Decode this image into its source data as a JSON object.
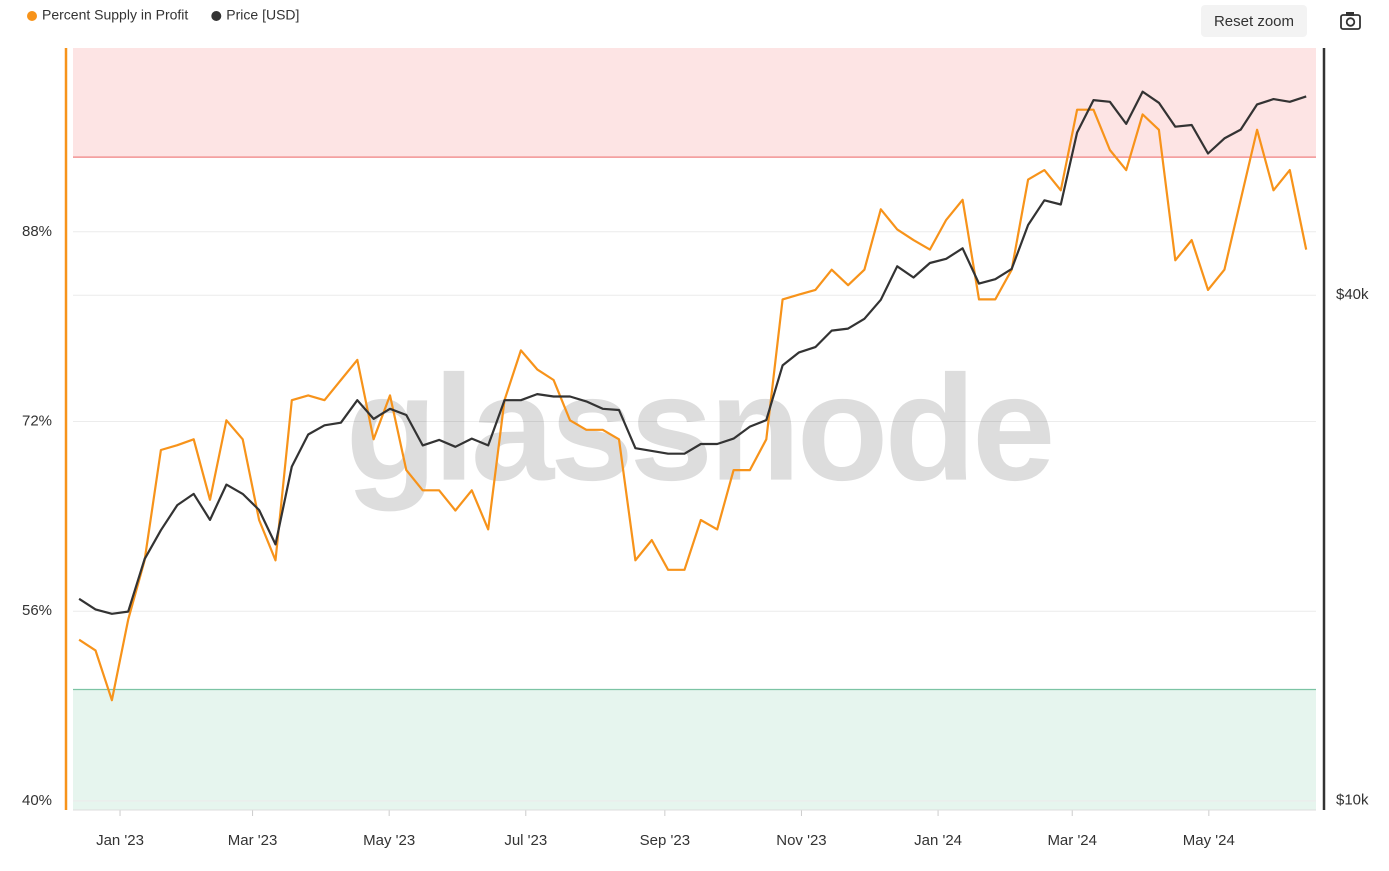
{
  "chart_data": {
    "type": "line",
    "watermark": "glassnode",
    "reset_button": "Reset zoom",
    "log_y2": true,
    "grid": true,
    "legend": "top-left",
    "x": [
      2022.95,
      2022.97,
      2022.99,
      2023.01,
      2023.03,
      2023.05,
      2023.07,
      2023.09,
      2023.11,
      2023.13,
      2023.15,
      2023.17,
      2023.19,
      2023.21,
      2023.23,
      2023.25,
      2023.27,
      2023.29,
      2023.31,
      2023.33,
      2023.35,
      2023.37,
      2023.39,
      2023.41,
      2023.43,
      2023.45,
      2023.47,
      2023.49,
      2023.51,
      2023.53,
      2023.55,
      2023.57,
      2023.59,
      2023.61,
      2023.63,
      2023.65,
      2023.67,
      2023.69,
      2023.71,
      2023.73,
      2023.75,
      2023.77,
      2023.79,
      2023.81,
      2023.83,
      2023.85,
      2023.87,
      2023.89,
      2023.91,
      2023.93,
      2023.95,
      2023.97,
      2023.99,
      2024.01,
      2024.03,
      2024.05,
      2024.07,
      2024.09,
      2024.11,
      2024.13,
      2024.15,
      2024.17,
      2024.19,
      2024.21,
      2024.23,
      2024.25,
      2024.27,
      2024.29,
      2024.31,
      2024.33,
      2024.35,
      2024.37,
      2024.39,
      2024.41,
      2024.43,
      2024.45
    ],
    "series": [
      {
        "name": "Percent Supply in Profit",
        "color": "#f7931a",
        "axis": "y",
        "values": [
          53.6,
          52.7,
          48.5,
          55.3,
          60.3,
          69.6,
          70.0,
          70.5,
          65.4,
          72.1,
          70.5,
          63.7,
          60.3,
          73.8,
          74.2,
          73.8,
          75.5,
          77.2,
          70.5,
          74.2,
          67.9,
          66.2,
          66.2,
          64.5,
          66.2,
          62.9,
          73.8,
          78.0,
          76.4,
          75.5,
          72.1,
          71.3,
          71.3,
          70.5,
          60.3,
          62.0,
          59.5,
          59.5,
          63.7,
          62.9,
          67.9,
          67.9,
          70.5,
          82.3,
          82.7,
          83.1,
          84.8,
          83.5,
          84.8,
          89.9,
          88.2,
          87.3,
          86.5,
          89.0,
          90.7,
          82.3,
          82.3,
          84.8,
          92.4,
          93.2,
          91.5,
          98.3,
          98.3,
          94.9,
          93.2,
          97.9,
          96.6,
          85.6,
          87.3,
          83.1,
          84.8,
          90.7,
          96.6,
          91.5,
          93.2,
          86.5
        ]
      },
      {
        "name": "Price [USD]",
        "color": "#333333",
        "axis": "y2",
        "values": [
          17400,
          16900,
          16700,
          16800,
          19400,
          21000,
          22500,
          23200,
          21600,
          23800,
          23200,
          22200,
          20200,
          25000,
          27300,
          28000,
          28200,
          30000,
          28500,
          29300,
          28800,
          26500,
          26900,
          26400,
          27000,
          26500,
          30000,
          30000,
          30500,
          30300,
          30300,
          29900,
          29300,
          29200,
          26300,
          26100,
          25900,
          25900,
          26600,
          26600,
          27000,
          27900,
          28400,
          33000,
          34200,
          34700,
          36300,
          36500,
          37500,
          39500,
          43300,
          42000,
          43700,
          44200,
          45500,
          41300,
          41800,
          43000,
          48500,
          51900,
          51300,
          62500,
          68300,
          68000,
          64000,
          69900,
          67800,
          63500,
          63800,
          59000,
          61500,
          63000,
          67500,
          68500,
          68000,
          69000
        ]
      }
    ],
    "bands": [
      {
        "from": 94.3,
        "to": 103.5,
        "color": "#fde4e4",
        "line": "#f08080"
      },
      {
        "from": 39.24,
        "to": 49.4,
        "color": "#e6f5ee",
        "line": "#7cc4a4"
      }
    ],
    "xlim": [
      2022.9425,
      2024.462
    ],
    "xticks": [
      {
        "value": 2023.0,
        "label": "Jan '23"
      },
      {
        "value": 2023.162,
        "label": "Mar '23"
      },
      {
        "value": 2023.329,
        "label": "May '23"
      },
      {
        "value": 2023.496,
        "label": "Jul '23"
      },
      {
        "value": 2023.666,
        "label": "Sep '23"
      },
      {
        "value": 2023.833,
        "label": "Nov '23"
      },
      {
        "value": 2024.0,
        "label": "Jan '24"
      },
      {
        "value": 2024.164,
        "label": "Mar '24"
      },
      {
        "value": 2024.331,
        "label": "May '24"
      }
    ],
    "ylim": [
      39.24,
      103.5
    ],
    "yticks": [
      {
        "value": 40,
        "label": "40%"
      },
      {
        "value": 56,
        "label": "56%"
      },
      {
        "value": 72,
        "label": "72%"
      },
      {
        "value": 88,
        "label": "88%"
      }
    ],
    "y2lim": [
      9750,
      78800
    ],
    "y2ticks": [
      {
        "value": 10000,
        "label": "$10k"
      },
      {
        "value": 40000,
        "label": "$40k"
      }
    ]
  }
}
